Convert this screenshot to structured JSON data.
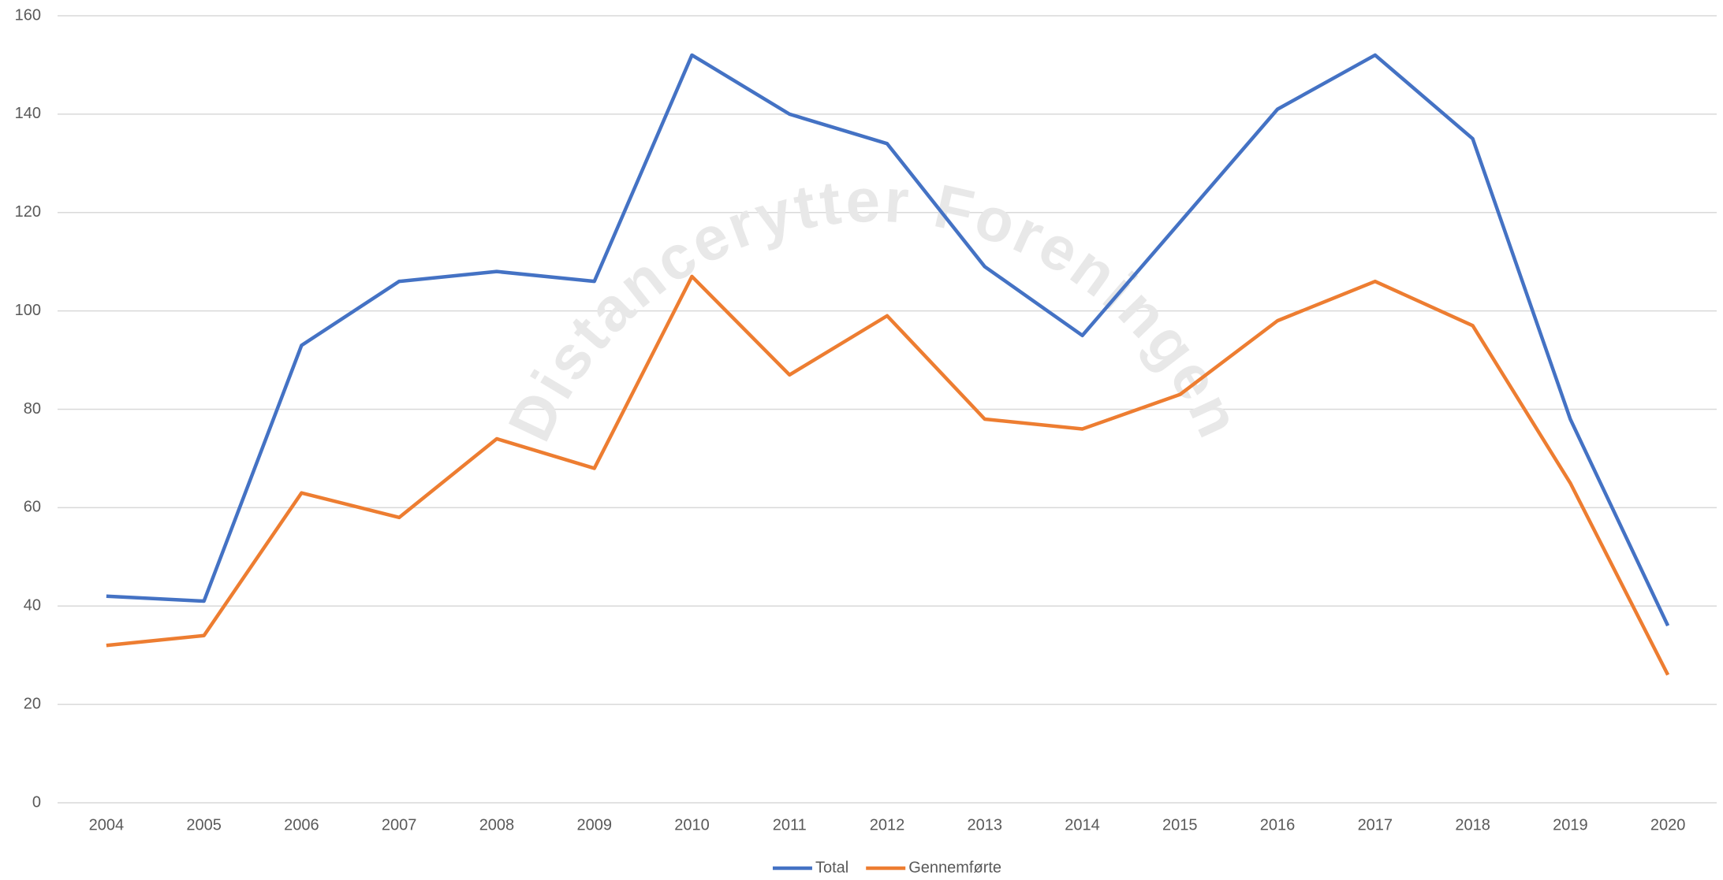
{
  "chart_data": {
    "type": "line",
    "watermark": "Distancerytter Foreningen",
    "categories": [
      "2004",
      "2005",
      "2006",
      "2007",
      "2008",
      "2009",
      "2010",
      "2011",
      "2012",
      "2013",
      "2014",
      "2015",
      "2016",
      "2017",
      "2018",
      "2019",
      "2020"
    ],
    "series": [
      {
        "name": "Total",
        "color": "#4472c4",
        "values": [
          42,
          41,
          93,
          106,
          108,
          106,
          152,
          140,
          134,
          109,
          95,
          118,
          141,
          152,
          135,
          78,
          36
        ]
      },
      {
        "name": "Gennemførte",
        "color": "#ed7d31",
        "values": [
          32,
          34,
          63,
          58,
          74,
          68,
          107,
          87,
          99,
          78,
          76,
          83,
          98,
          106,
          97,
          65,
          26
        ]
      }
    ],
    "ylim": [
      0,
      160
    ],
    "yticks": [
      0,
      20,
      40,
      60,
      80,
      100,
      120,
      140,
      160
    ],
    "grid": true,
    "legend": "bottom"
  }
}
